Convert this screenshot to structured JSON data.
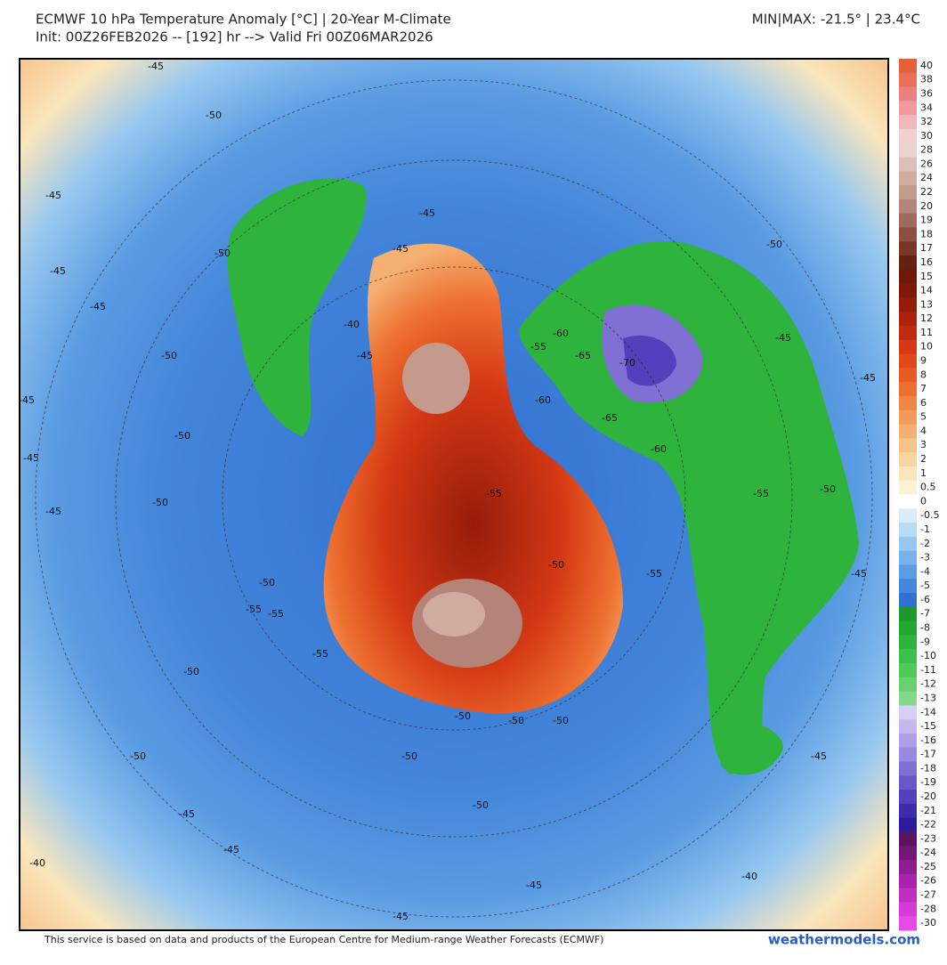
{
  "header": {
    "title": "ECMWF 10 hPa Temperature Anomaly [°C] | 20-Year M-Climate",
    "subtitle": "Init: 00Z26FEB2026 -- [192] hr --> Valid Fri 00Z06MAR2026",
    "minmax": "MIN|MAX: -21.5° | 23.4°C"
  },
  "colorbar": [
    {
      "label": "40",
      "color": "#e8603a"
    },
    {
      "label": "38",
      "color": "#e8705a"
    },
    {
      "label": "36",
      "color": "#eb8080"
    },
    {
      "label": "34",
      "color": "#ee9aa0"
    },
    {
      "label": "32",
      "color": "#f0b8bc"
    },
    {
      "label": "30",
      "color": "#f2d0d2"
    },
    {
      "label": "28",
      "color": "#e8d4d0"
    },
    {
      "label": "26",
      "color": "#dcc0b8"
    },
    {
      "label": "24",
      "color": "#d0aca0"
    },
    {
      "label": "22",
      "color": "#c49a8c"
    },
    {
      "label": "20",
      "color": "#b48478"
    },
    {
      "label": "19",
      "color": "#a06a5c"
    },
    {
      "label": "18",
      "color": "#8c5040"
    },
    {
      "label": "17",
      "color": "#783828"
    },
    {
      "label": "16",
      "color": "#642010"
    },
    {
      "label": "15",
      "color": "#6e1a08"
    },
    {
      "label": "14",
      "color": "#801808"
    },
    {
      "label": "13",
      "color": "#961c0a"
    },
    {
      "label": "12",
      "color": "#ac220c"
    },
    {
      "label": "11",
      "color": "#c02a10"
    },
    {
      "label": "10",
      "color": "#d43814"
    },
    {
      "label": "9",
      "color": "#e04a1a"
    },
    {
      "label": "8",
      "color": "#e85c24"
    },
    {
      "label": "7",
      "color": "#ee7030"
    },
    {
      "label": "6",
      "color": "#f08644"
    },
    {
      "label": "5",
      "color": "#f29c58"
    },
    {
      "label": "4",
      "color": "#f4b070"
    },
    {
      "label": "3",
      "color": "#f6c488"
    },
    {
      "label": "2",
      "color": "#f8d6a0"
    },
    {
      "label": "1",
      "color": "#fae6bc"
    },
    {
      "label": "0.5",
      "color": "#fcf2d8"
    },
    {
      "label": "0",
      "color": "#ffffff"
    },
    {
      "label": "-0.5",
      "color": "#d8ecfa"
    },
    {
      "label": "-1",
      "color": "#b8dcf6"
    },
    {
      "label": "-2",
      "color": "#98c8f0"
    },
    {
      "label": "-3",
      "color": "#78b2ea"
    },
    {
      "label": "-4",
      "color": "#5a9ce2"
    },
    {
      "label": "-5",
      "color": "#4486da"
    },
    {
      "label": "-6",
      "color": "#3070d0"
    },
    {
      "label": "-7",
      "color": "#1a9a2a"
    },
    {
      "label": "-8",
      "color": "#22a832"
    },
    {
      "label": "-9",
      "color": "#2eb43c"
    },
    {
      "label": "-10",
      "color": "#3cc04a"
    },
    {
      "label": "-11",
      "color": "#50c85a"
    },
    {
      "label": "-12",
      "color": "#68d070"
    },
    {
      "label": "-13",
      "color": "#84d88c"
    },
    {
      "label": "-14",
      "color": "#d8d0f4"
    },
    {
      "label": "-15",
      "color": "#c4b8ee"
    },
    {
      "label": "-16",
      "color": "#aea0e6"
    },
    {
      "label": "-17",
      "color": "#9888de"
    },
    {
      "label": "-18",
      "color": "#8070d4"
    },
    {
      "label": "-19",
      "color": "#6a58c8"
    },
    {
      "label": "-20",
      "color": "#5440bc"
    },
    {
      "label": "-21",
      "color": "#3e2cae"
    },
    {
      "label": "-22",
      "color": "#2e1c9c"
    },
    {
      "label": "-23",
      "color": "#5a1460"
    },
    {
      "label": "-24",
      "color": "#741878"
    },
    {
      "label": "-25",
      "color": "#8e1e92"
    },
    {
      "label": "-26",
      "color": "#a824aa"
    },
    {
      "label": "-27",
      "color": "#c02ec2"
    },
    {
      "label": "-28",
      "color": "#d83ad8"
    },
    {
      "label": "-30",
      "color": "#e84ae8"
    }
  ],
  "map": {
    "contour_labels": [
      "-45",
      "-50",
      "-45",
      "-50",
      "-45",
      "-45",
      "-50",
      "-45",
      "-50",
      "-45",
      "-45",
      "-50",
      "-45",
      "-55",
      "-60",
      "-65",
      "-70",
      "-60",
      "-65",
      "-60",
      "-55",
      "-50",
      "-45",
      "-50",
      "-55",
      "-45",
      "-40",
      "-45",
      "-55",
      "-50",
      "-55",
      "-50",
      "-50",
      "-50",
      "-50",
      "-45",
      "-45",
      "-45",
      "-45",
      "-40",
      "-40",
      "-50",
      "-55",
      "-45",
      "-50",
      "-45",
      "-50",
      "-55",
      "-50",
      "-45"
    ]
  },
  "footer": {
    "note": "This service is based on data and products of the European Centre for Medium-range Weather Forecasts (ECMWF)",
    "brand": "weathermodels.com"
  }
}
